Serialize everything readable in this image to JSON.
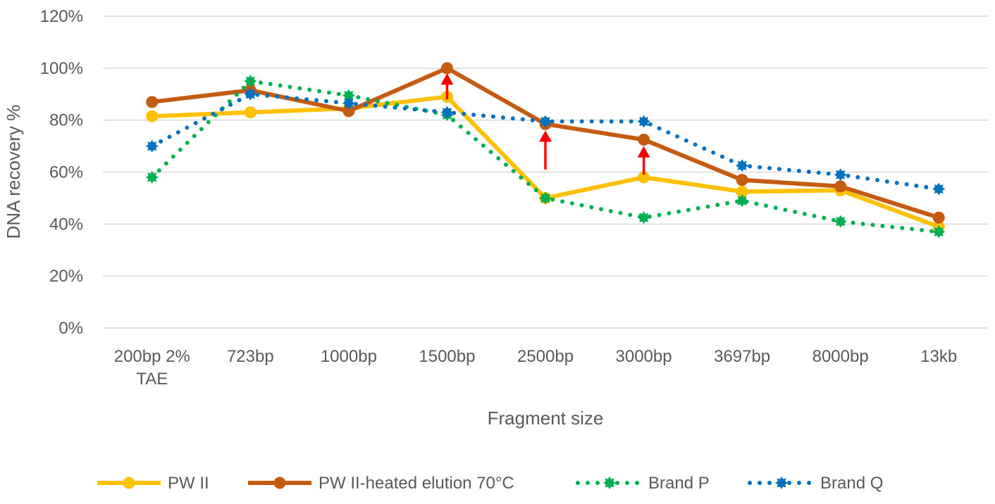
{
  "chart_data": {
    "type": "line",
    "categories": [
      [
        "200bp 2%",
        "TAE"
      ],
      [
        "723bp"
      ],
      [
        "1000bp"
      ],
      [
        "1500bp"
      ],
      [
        "2500bp"
      ],
      [
        "3000bp"
      ],
      [
        "3697bp"
      ],
      [
        "8000bp"
      ],
      [
        "13kb"
      ]
    ],
    "xlabel": "Fragment size",
    "ylabel": "DNA recovery %",
    "ylim": [
      0,
      120
    ],
    "yticks": [
      0,
      20,
      40,
      60,
      80,
      100,
      120
    ],
    "ytick_suffix": "%",
    "grid": true,
    "legend_position": "bottom",
    "series": [
      {
        "name": "PW II",
        "color": "#FFC000",
        "style": "solid",
        "marker": "circle",
        "values": [
          81.5,
          83,
          84.5,
          89,
          50,
          58,
          52.5,
          53,
          39
        ]
      },
      {
        "name": "PW II-heated elution 70°C",
        "color": "#C55A11",
        "style": "solid",
        "marker": "circle",
        "values": [
          87,
          91.5,
          83.5,
          100,
          78.5,
          72.5,
          57,
          54.5,
          42.5
        ]
      },
      {
        "name": "Brand P",
        "color": "#00B050",
        "style": "dotted",
        "marker": "gear",
        "values": [
          58,
          95,
          89.5,
          82,
          50,
          42.5,
          49,
          41,
          37
        ]
      },
      {
        "name": "Brand Q",
        "color": "#0070C0",
        "style": "dotted",
        "marker": "gear",
        "values": [
          70,
          90,
          86.5,
          83,
          79.5,
          79.5,
          62.5,
          59,
          53.5
        ]
      }
    ],
    "annotations": [
      {
        "type": "arrow",
        "color": "#FF0000",
        "category_index": 3,
        "from": 88,
        "to": 98
      },
      {
        "type": "arrow",
        "color": "#FF0000",
        "category_index": 4,
        "from": 61,
        "to": 76
      },
      {
        "type": "arrow",
        "color": "#FF0000",
        "category_index": 5,
        "from": 59,
        "to": 70
      }
    ]
  }
}
